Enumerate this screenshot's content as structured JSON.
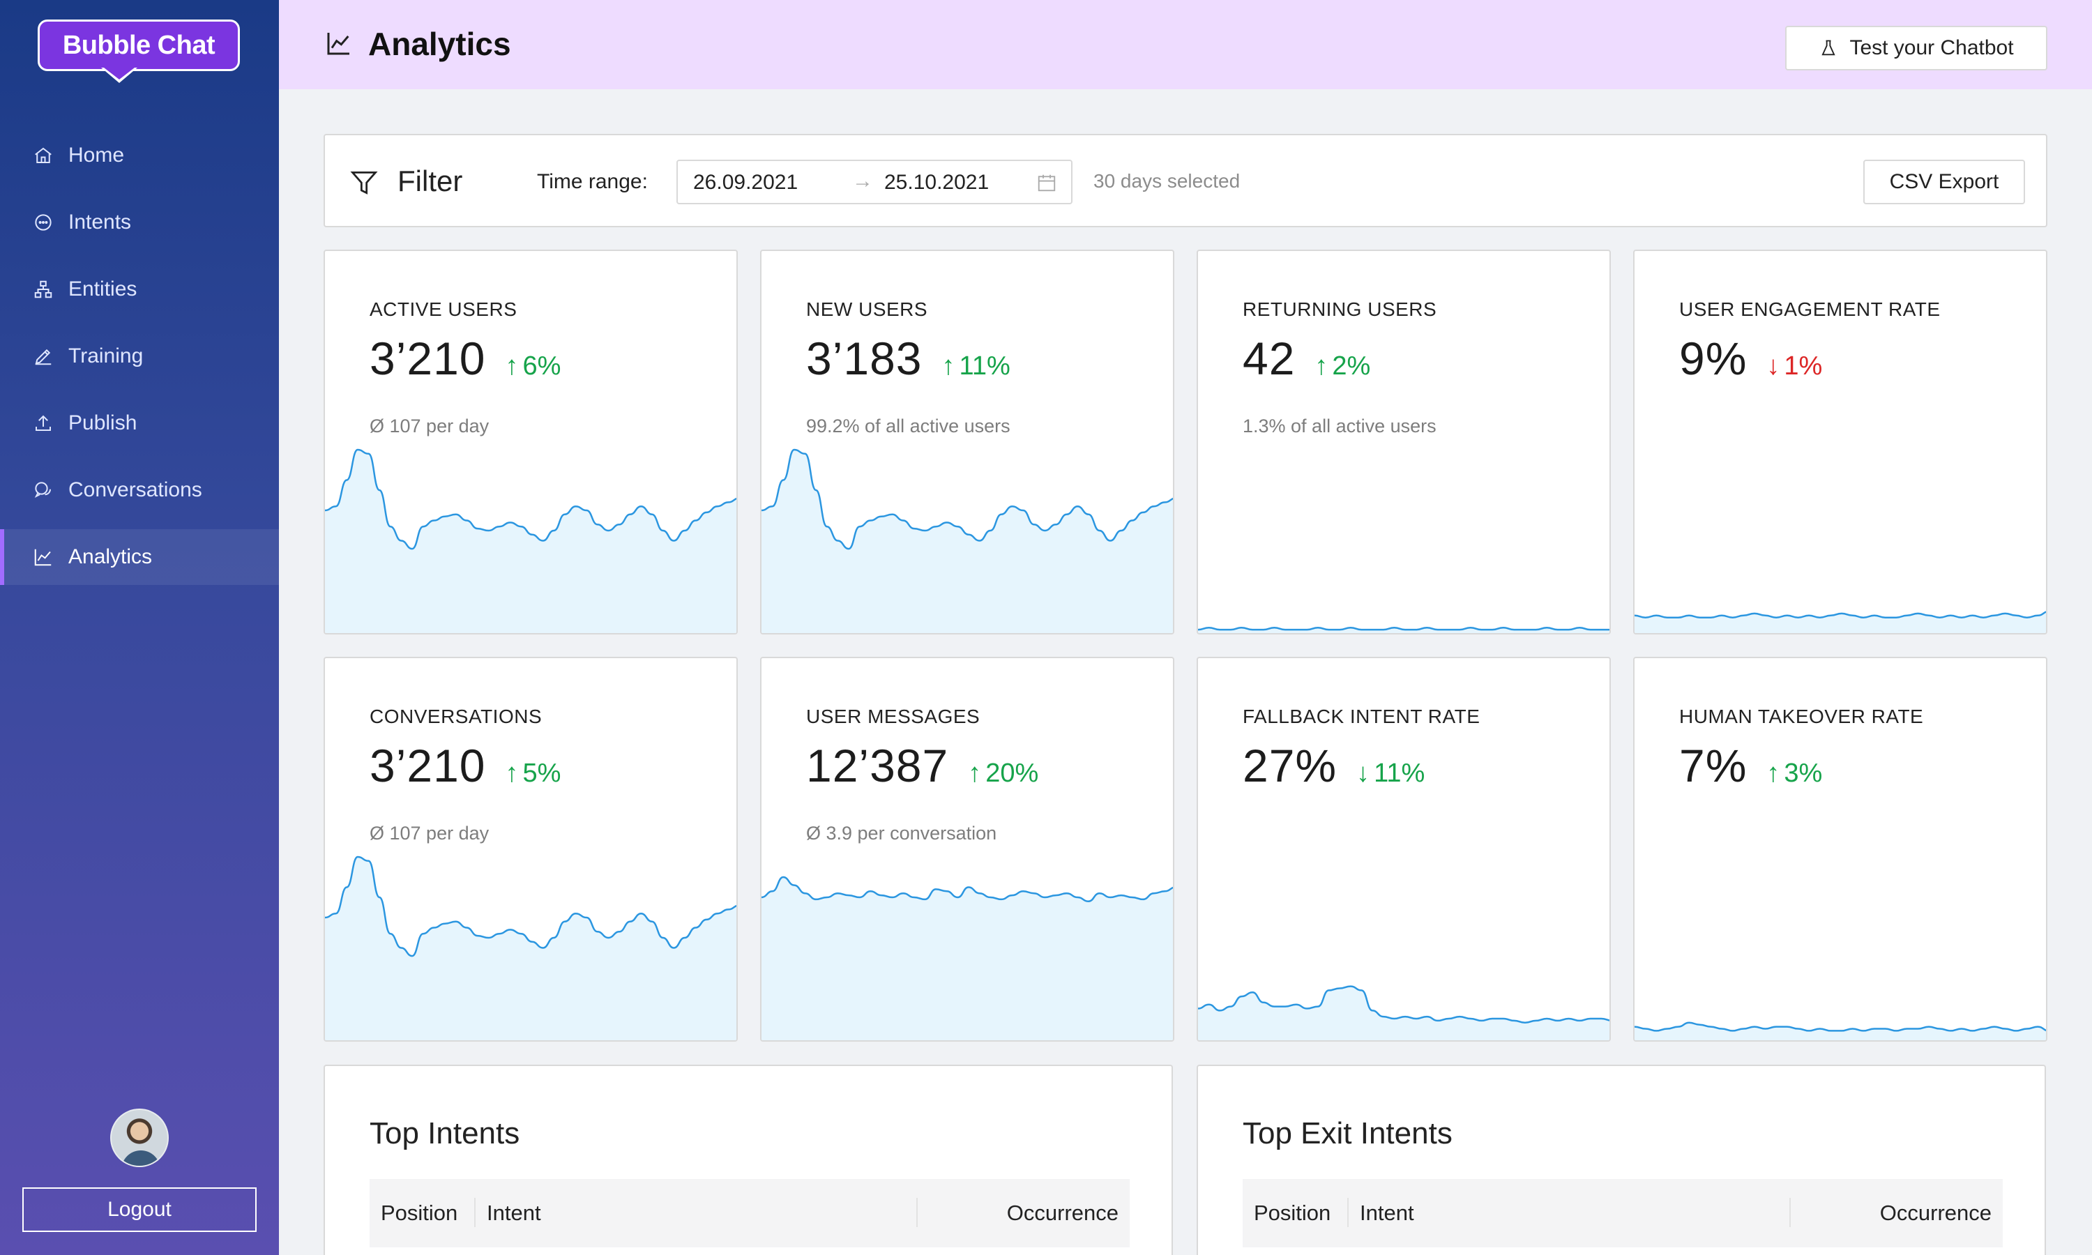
{
  "brand": {
    "name": "Bubble Chat"
  },
  "sidebar": {
    "items": [
      {
        "label": "Home",
        "icon": "home-icon"
      },
      {
        "label": "Intents",
        "icon": "chat-bubble-icon"
      },
      {
        "label": "Entities",
        "icon": "hierarchy-icon"
      },
      {
        "label": "Training",
        "icon": "pen-icon"
      },
      {
        "label": "Publish",
        "icon": "upload-icon"
      },
      {
        "label": "Conversations",
        "icon": "conversations-icon"
      },
      {
        "label": "Analytics",
        "icon": "line-chart-icon",
        "active": true
      }
    ],
    "logout_label": "Logout"
  },
  "header": {
    "title": "Analytics",
    "test_button": "Test your Chatbot"
  },
  "filter": {
    "title": "Filter",
    "time_label": "Time range:",
    "start": "26.09.2021",
    "end": "25.10.2021",
    "days_selected": "30 days selected",
    "csv_label": "CSV Export"
  },
  "colors": {
    "accent": "#7b35e0",
    "up": "#16a34a",
    "down": "#dc2626",
    "spark_line": "#2b96e0",
    "spark_fill": "#e6f5fd"
  },
  "cards": [
    {
      "label": "ACTIVE USERS",
      "value": "3’210",
      "arrow": "↑",
      "delta": "6%",
      "dir": "up",
      "sub": "Ø 107 per day",
      "series": [
        60,
        62,
        75,
        90,
        88,
        70,
        52,
        45,
        41,
        52,
        55,
        57,
        58,
        55,
        51,
        50,
        52,
        54,
        52,
        48,
        45,
        50,
        58,
        62,
        60,
        53,
        50,
        53,
        58,
        62,
        58,
        50,
        45,
        50,
        55,
        59,
        62,
        64,
        66
      ]
    },
    {
      "label": "NEW USERS",
      "value": "3’183",
      "arrow": "↑",
      "delta": "11%",
      "dir": "up",
      "sub": "99.2% of all active users",
      "series": [
        60,
        62,
        75,
        90,
        88,
        70,
        52,
        45,
        41,
        52,
        55,
        57,
        58,
        55,
        51,
        50,
        52,
        54,
        52,
        48,
        45,
        50,
        58,
        62,
        60,
        53,
        50,
        53,
        58,
        62,
        58,
        50,
        45,
        50,
        55,
        59,
        62,
        64,
        66
      ]
    },
    {
      "label": "RETURNING USERS",
      "value": "42",
      "arrow": "↑",
      "delta": "2%",
      "dir": "up",
      "sub": "1.3% of all active users",
      "series": [
        1,
        2,
        1,
        1,
        2,
        1,
        1,
        2,
        1,
        1,
        1,
        2,
        1,
        1,
        2,
        1,
        1,
        1,
        2,
        1,
        1,
        2,
        1,
        1,
        1,
        2,
        1,
        1,
        2,
        1,
        1,
        1,
        2,
        1,
        1,
        2,
        1,
        1,
        1
      ]
    },
    {
      "label": "USER ENGAGEMENT RATE",
      "value": "9%",
      "arrow": "↓",
      "delta": "1%",
      "dir": "down",
      "sub": "",
      "series": [
        8,
        7,
        8,
        7,
        7,
        8,
        7,
        7,
        8,
        7,
        8,
        9,
        8,
        7,
        8,
        7,
        8,
        7,
        8,
        9,
        8,
        7,
        8,
        7,
        7,
        8,
        9,
        8,
        7,
        8,
        7,
        8,
        7,
        8,
        9,
        8,
        7,
        8,
        10
      ]
    },
    {
      "label": "CONVERSATIONS",
      "value": "3’210",
      "arrow": "↑",
      "delta": "5%",
      "dir": "up",
      "sub": "Ø 107 per day",
      "series": [
        60,
        62,
        75,
        90,
        88,
        70,
        52,
        45,
        41,
        52,
        55,
        57,
        58,
        55,
        51,
        50,
        52,
        54,
        52,
        48,
        45,
        50,
        58,
        62,
        60,
        53,
        50,
        53,
        58,
        62,
        58,
        50,
        45,
        50,
        55,
        59,
        62,
        64,
        66
      ]
    },
    {
      "label": "USER MESSAGES",
      "value": "12’387",
      "arrow": "↑",
      "delta": "20%",
      "dir": "up",
      "sub": "Ø 3.9 per conversation",
      "series": [
        70,
        73,
        80,
        76,
        72,
        69,
        70,
        72,
        71,
        70,
        73,
        71,
        70,
        72,
        70,
        69,
        74,
        73,
        70,
        75,
        72,
        70,
        69,
        71,
        73,
        72,
        70,
        71,
        72,
        70,
        68,
        72,
        70,
        71,
        70,
        69,
        72,
        73,
        75
      ]
    },
    {
      "label": "FALLBACK INTENT RATE",
      "value": "27%",
      "arrow": "↓",
      "delta": "11%",
      "dir": "up",
      "sub": "",
      "series": [
        15,
        17,
        14,
        16,
        21,
        23,
        18,
        16,
        16,
        17,
        15,
        16,
        24,
        25,
        26,
        24,
        14,
        11,
        10,
        11,
        10,
        11,
        9,
        10,
        11,
        10,
        9,
        10,
        10,
        9,
        8,
        9,
        10,
        9,
        10,
        9,
        10,
        10,
        9
      ]
    },
    {
      "label": "HUMAN TAKEOVER RATE",
      "value": "7%",
      "arrow": "↑",
      "delta": "3%",
      "dir": "up",
      "sub": "",
      "series": [
        6,
        5,
        4,
        5,
        6,
        8,
        7,
        6,
        5,
        4,
        5,
        6,
        5,
        6,
        6,
        5,
        4,
        5,
        4,
        4,
        5,
        4,
        5,
        5,
        4,
        5,
        5,
        6,
        5,
        4,
        5,
        4,
        5,
        6,
        5,
        4,
        5,
        6,
        4
      ]
    }
  ],
  "tables": [
    {
      "title": "Top Intents",
      "columns": [
        "Position",
        "Intent",
        "Occurrence"
      ]
    },
    {
      "title": "Top Exit Intents",
      "columns": [
        "Position",
        "Intent",
        "Occurrence"
      ]
    }
  ]
}
